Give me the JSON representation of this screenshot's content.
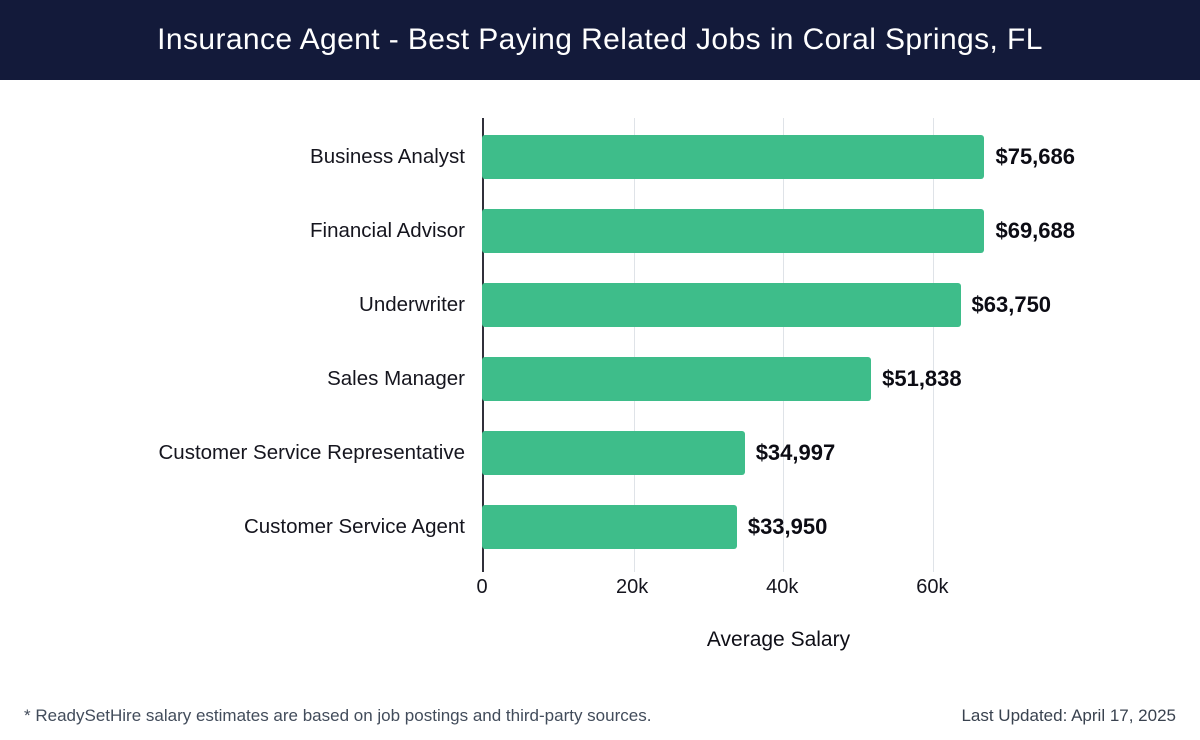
{
  "header": {
    "title": "Insurance Agent - Best Paying Related Jobs in Coral Springs, FL"
  },
  "chart_data": {
    "type": "bar",
    "orientation": "horizontal",
    "title": "Insurance Agent - Best Paying Related Jobs in Coral Springs, FL",
    "categories": [
      "Business Analyst",
      "Financial Advisor",
      "Underwriter",
      "Sales Manager",
      "Customer Service Representative",
      "Customer Service Agent"
    ],
    "values": [
      75686,
      69688,
      63750,
      51838,
      34997,
      33950
    ],
    "value_labels": [
      "$75,686",
      "$69,688",
      "$63,750",
      "$51,838",
      "$34,997",
      "$33,950"
    ],
    "xlabel": "Average Salary",
    "ylabel": "",
    "xlim": [
      0,
      79000
    ],
    "xticks": [
      {
        "value": 0,
        "label": "0"
      },
      {
        "value": 20000,
        "label": "20k"
      },
      {
        "value": 40000,
        "label": "40k"
      },
      {
        "value": 60000,
        "label": "60k"
      }
    ],
    "grid": true,
    "legend": false
  },
  "colors": {
    "header_bg": "#131a3a",
    "bar_color": "#3ebd8a",
    "grid_color": "#dfe3e8",
    "axis_line": "#30303a"
  },
  "footer": {
    "note": "* ReadySetHire salary estimates are based on job postings and third-party sources.",
    "updated": "Last Updated: April 17, 2025"
  }
}
